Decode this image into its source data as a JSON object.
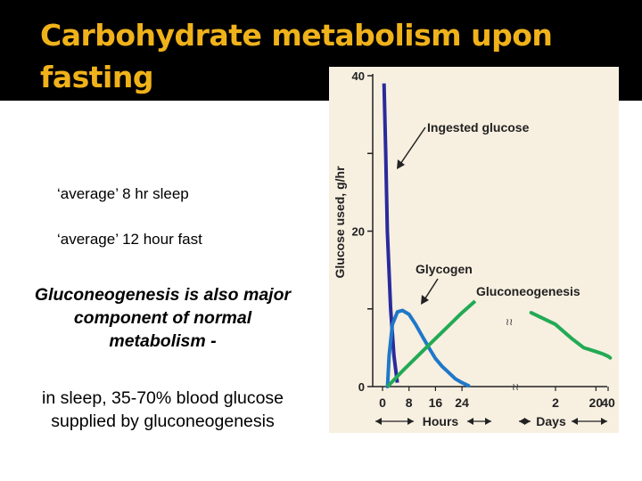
{
  "slide": {
    "title": "Carbohydrate metabolism upon fasting",
    "bullets": [
      "‘average’ 8 hr sleep",
      "‘average’ 12 hour fast"
    ],
    "emphasis": "Gluconeogenesis is also major component of normal metabolism -",
    "body": "in sleep, 35-70% blood glucose supplied by gluconeogenesis"
  },
  "chart_data": {
    "type": "line",
    "ylabel": "Glucose used, g/hr",
    "ylim": [
      0,
      40
    ],
    "y_ticks": [
      "0",
      "20",
      "40"
    ],
    "x_ticks_hours": [
      "0",
      "8",
      "16",
      "24"
    ],
    "x_ticks_days": [
      "2",
      "20",
      "40"
    ],
    "xlabel_hours": "Hours",
    "xlabel_days": "Days",
    "annotations": [
      "Ingested glucose",
      "Glycogen",
      "Gluconeogenesis"
    ],
    "series": [
      {
        "name": "Ingested glucose",
        "color": "#2a2a9c",
        "points": [
          [
            1,
            39
          ],
          [
            1.5,
            30
          ],
          [
            2,
            20
          ],
          [
            3,
            10
          ],
          [
            4,
            4
          ],
          [
            5,
            0.5
          ]
        ]
      },
      {
        "name": "Glycogen",
        "color": "#1f78c8",
        "points": [
          [
            1.5,
            0
          ],
          [
            2,
            4
          ],
          [
            3,
            8
          ],
          [
            4.5,
            9.6
          ],
          [
            6,
            9.8
          ],
          [
            8,
            9.3
          ],
          [
            10,
            8
          ],
          [
            12,
            6.5
          ],
          [
            14,
            5
          ],
          [
            16,
            3.6
          ],
          [
            18,
            2.6
          ],
          [
            20,
            1.8
          ],
          [
            22,
            1.0
          ],
          [
            24,
            0.5
          ],
          [
            26,
            0.1
          ]
        ]
      },
      {
        "name": "Gluconeogenesis",
        "color": "#22aa55",
        "points_hours": [
          [
            1.5,
            0
          ],
          [
            6,
            2
          ],
          [
            12,
            4.5
          ],
          [
            18,
            7
          ],
          [
            24,
            9.5
          ],
          [
            28,
            11
          ]
        ],
        "points_days": [
          [
            0.5,
            9.5
          ],
          [
            2,
            8
          ],
          [
            5,
            6.2
          ],
          [
            10,
            5.0
          ],
          [
            20,
            4.5
          ],
          [
            30,
            4.2
          ],
          [
            40,
            3.9
          ],
          [
            45,
            3.7
          ]
        ]
      }
    ]
  }
}
